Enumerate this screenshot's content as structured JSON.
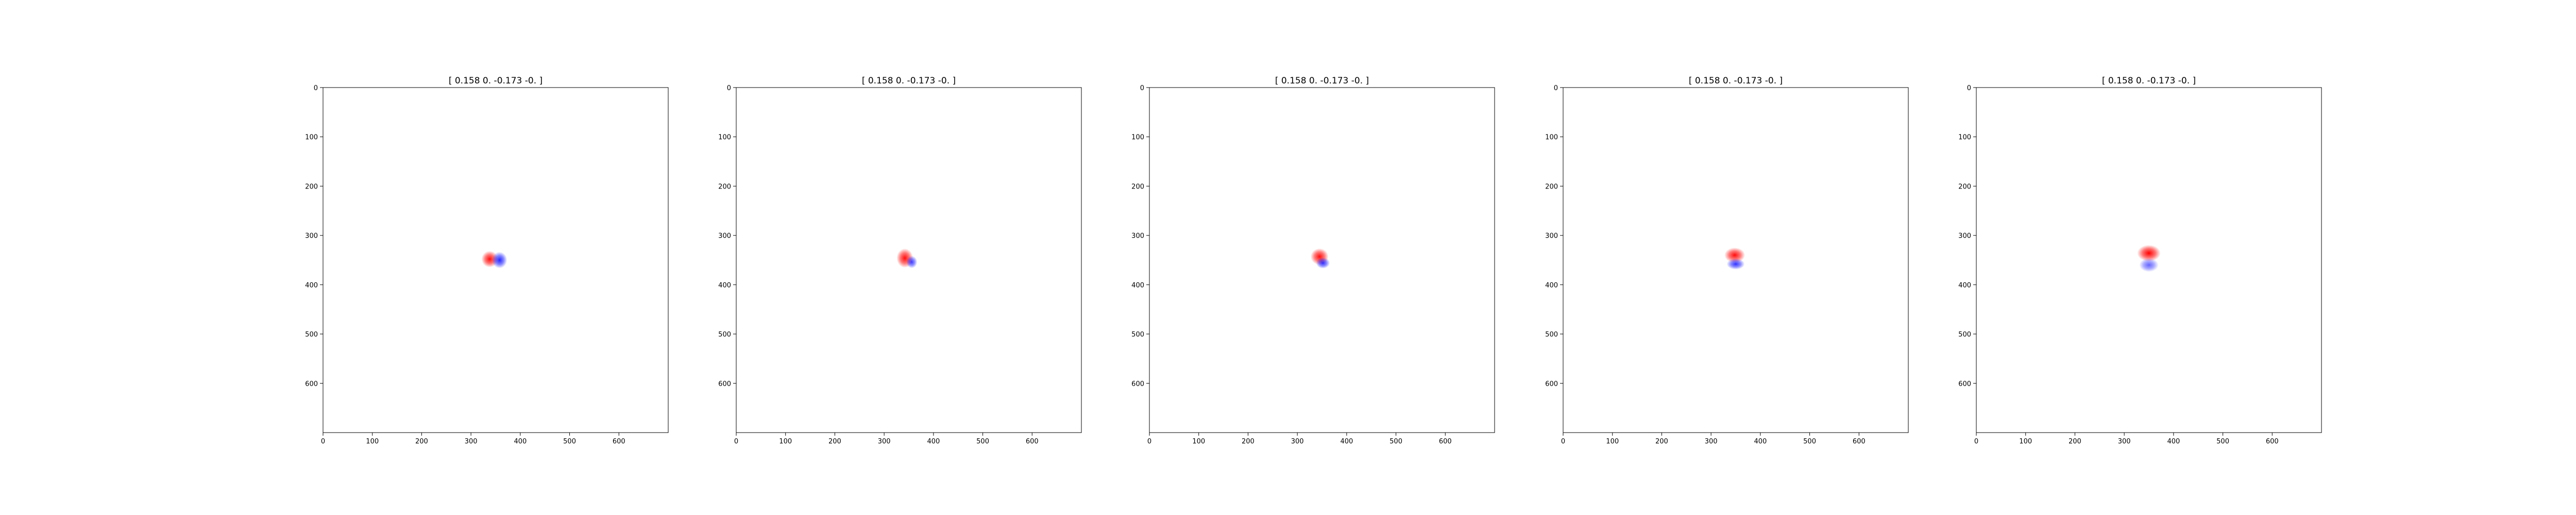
{
  "chart_data": [
    {
      "type": "heatmap",
      "title": "[ 0.158  0.    -0.173 -0.   ]",
      "xlabel": "",
      "ylabel": "",
      "xlim": [
        0,
        700
      ],
      "ylim": [
        700,
        0
      ],
      "xticks": [
        0,
        100,
        200,
        300,
        400,
        500,
        600
      ],
      "yticks": [
        0,
        100,
        200,
        300,
        400,
        500,
        600
      ],
      "colormap": "bwr",
      "grid": false,
      "blobs": [
        {
          "x": 338,
          "y": 348,
          "rx": 12,
          "ry": 12,
          "sign": 1,
          "strength": 0.95
        },
        {
          "x": 358,
          "y": 350,
          "rx": 11,
          "ry": 12,
          "sign": -1,
          "strength": 0.85
        }
      ]
    },
    {
      "type": "heatmap",
      "title": "[ 0.158  0.    -0.173 -0.   ]",
      "xlabel": "",
      "ylabel": "",
      "xlim": [
        0,
        700
      ],
      "ylim": [
        700,
        0
      ],
      "xticks": [
        0,
        100,
        200,
        300,
        400,
        500,
        600
      ],
      "yticks": [
        0,
        100,
        200,
        300,
        400,
        500,
        600
      ],
      "colormap": "bwr",
      "grid": false,
      "blobs": [
        {
          "x": 342,
          "y": 346,
          "rx": 12,
          "ry": 14,
          "sign": 1,
          "strength": 0.95
        },
        {
          "x": 356,
          "y": 354,
          "rx": 8,
          "ry": 9,
          "sign": -1,
          "strength": 0.75
        }
      ]
    },
    {
      "type": "heatmap",
      "title": "[ 0.158  0.    -0.173 -0.   ]",
      "xlabel": "",
      "ylabel": "",
      "xlim": [
        0,
        700
      ],
      "ylim": [
        700,
        0
      ],
      "xticks": [
        0,
        100,
        200,
        300,
        400,
        500,
        600
      ],
      "yticks": [
        0,
        100,
        200,
        300,
        400,
        500,
        600
      ],
      "colormap": "bwr",
      "grid": false,
      "blobs": [
        {
          "x": 345,
          "y": 343,
          "rx": 13,
          "ry": 12,
          "sign": 1,
          "strength": 0.95
        },
        {
          "x": 352,
          "y": 356,
          "rx": 10,
          "ry": 8,
          "sign": -1,
          "strength": 0.8
        }
      ]
    },
    {
      "type": "heatmap",
      "title": "[ 0.158  0.    -0.173 -0.   ]",
      "xlabel": "",
      "ylabel": "",
      "xlim": [
        0,
        700
      ],
      "ylim": [
        700,
        0
      ],
      "xticks": [
        0,
        100,
        200,
        300,
        400,
        500,
        600
      ],
      "yticks": [
        0,
        100,
        200,
        300,
        400,
        500,
        600
      ],
      "colormap": "bwr",
      "grid": false,
      "blobs": [
        {
          "x": 348,
          "y": 340,
          "rx": 15,
          "ry": 11,
          "sign": 1,
          "strength": 0.95
        },
        {
          "x": 350,
          "y": 358,
          "rx": 13,
          "ry": 8,
          "sign": -1,
          "strength": 0.8
        }
      ]
    },
    {
      "type": "heatmap",
      "title": "[ 0.158  0.    -0.173 -0.   ]",
      "xlabel": "",
      "ylabel": "",
      "xlim": [
        0,
        700
      ],
      "ylim": [
        700,
        0
      ],
      "xticks": [
        0,
        100,
        200,
        300,
        400,
        500,
        600
      ],
      "yticks": [
        0,
        100,
        200,
        300,
        400,
        500,
        600
      ],
      "colormap": "bwr",
      "grid": false,
      "blobs": [
        {
          "x": 350,
          "y": 336,
          "rx": 17,
          "ry": 12,
          "sign": 1,
          "strength": 1.0
        },
        {
          "x": 350,
          "y": 360,
          "rx": 14,
          "ry": 10,
          "sign": -1,
          "strength": 0.6
        }
      ]
    }
  ]
}
